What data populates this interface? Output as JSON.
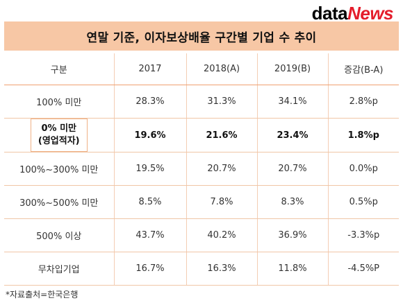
{
  "brand": {
    "logo_data": "data",
    "logo_news": "News",
    "accent_color": "#e41d2b",
    "title_bg_color": "#f7c7a5"
  },
  "title": "연말 기준, 이자보상배율 구간별 기업 수 추이",
  "table": {
    "headers": [
      "구분",
      "2017",
      "2018(A)",
      "2019(B)",
      "증감(B-A)"
    ],
    "rows": [
      {
        "label": "100% 미만",
        "values": [
          "28.3%",
          "31.3%",
          "34.1%",
          "2.8%p"
        ]
      },
      {
        "label": "0% 미만",
        "label2": "(영업적자)",
        "values": [
          "19.6%",
          "21.6%",
          "23.4%",
          "1.8%p"
        ]
      },
      {
        "label": "100%~300% 미만",
        "values": [
          "19.5%",
          "20.7%",
          "20.7%",
          "0.0%p"
        ]
      },
      {
        "label": "300%~500% 미만",
        "values": [
          "8.5%",
          "7.8%",
          "8.3%",
          "0.5%p"
        ]
      },
      {
        "label": "500% 이상",
        "values": [
          "43.7%",
          "40.2%",
          "36.9%",
          "-3.3%p"
        ]
      },
      {
        "label": "무차입기업",
        "values": [
          "16.7%",
          "16.3%",
          "11.8%",
          "-4.5%P"
        ]
      }
    ]
  },
  "footnote": "*자료출처=한국은행"
}
